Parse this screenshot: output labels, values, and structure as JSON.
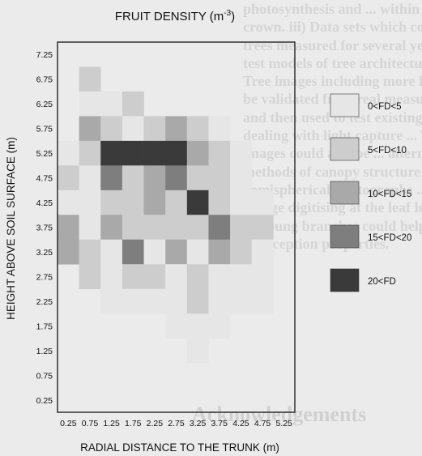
{
  "chart_data": {
    "type": "heatmap",
    "title": "FRUIT DENSITY (m",
    "title_superscript": "-3",
    "title_suffix": ")",
    "xlabel": "RADIAL DISTANCE TO THE TRUNK (m)",
    "ylabel": "HEIGHT ABOVE SOIL SURFACE (m)",
    "x_ticks": [
      "0.25",
      "0.75",
      "1.25",
      "1.75",
      "2.25",
      "2.75",
      "3.25",
      "3.75",
      "4.25",
      "4.75",
      "5.25"
    ],
    "y_ticks": [
      "7.25",
      "6.75",
      "6.25",
      "5.75",
      "5.25",
      "4.75",
      "4.25",
      "3.75",
      "3.25",
      "2.75",
      "2.25",
      "1.75",
      "1.25",
      "0.75",
      "0.25"
    ],
    "legend": [
      {
        "label": "0<FD<5",
        "color": "#e6e6e6"
      },
      {
        "label": "5<FD<10",
        "color": "#cdcdcd"
      },
      {
        "label": "10<FD<15",
        "color": "#a9a9a9"
      },
      {
        "label": "15<FD<20",
        "color": "#7e7e7e"
      },
      {
        "label": "20<FD",
        "color": "#3a3a3a"
      }
    ],
    "value_encoding": "density class index: 0 = 0<FD<5, 1 = 5<FD<10, 2 = 10<FD<15, 3 = 15<FD<20, 4 = 20<FD, null = no data",
    "grid": [
      [
        null,
        null,
        null,
        null,
        null,
        null,
        null,
        null,
        null,
        null,
        null
      ],
      [
        null,
        1,
        null,
        null,
        null,
        null,
        null,
        null,
        null,
        null,
        null
      ],
      [
        null,
        0,
        0,
        1,
        null,
        null,
        null,
        null,
        null,
        null,
        null
      ],
      [
        null,
        2,
        1,
        0,
        1,
        2,
        1,
        0,
        null,
        null,
        null
      ],
      [
        0,
        1,
        4,
        4,
        4,
        4,
        2,
        1,
        0,
        null,
        null
      ],
      [
        1,
        0,
        3,
        1,
        2,
        3,
        1,
        1,
        0,
        null,
        null
      ],
      [
        0,
        0,
        1,
        1,
        2,
        1,
        4,
        1,
        0,
        0,
        null
      ],
      [
        2,
        0,
        2,
        1,
        1,
        1,
        1,
        3,
        1,
        1,
        null
      ],
      [
        2,
        1,
        0,
        3,
        0,
        2,
        0,
        2,
        1,
        0,
        null
      ],
      [
        null,
        1,
        0,
        1,
        1,
        0,
        1,
        0,
        0,
        0,
        null
      ],
      [
        null,
        null,
        0,
        0,
        0,
        0,
        1,
        0,
        0,
        0,
        null
      ],
      [
        null,
        null,
        null,
        null,
        null,
        0,
        0,
        0,
        null,
        null,
        null
      ],
      [
        null,
        null,
        null,
        null,
        null,
        null,
        0,
        null,
        null,
        null,
        null
      ],
      [
        null,
        null,
        null,
        null,
        null,
        null,
        null,
        null,
        null,
        null,
        null
      ],
      [
        null,
        null,
        null,
        null,
        null,
        null,
        null,
        null,
        null,
        null,
        null
      ]
    ]
  },
  "background_text": {
    "lines": [
      "photosynthesis and ... within the",
      "crown. iii) Data sets which could be obtained on",
      "trees measured for several years could be used to",
      "test models of tree architecture dynamics. iv)",
      "Tree images including more leaves could",
      "be validated from real measurements of",
      "and then used to test existing models",
      "dealing with light capture ... Tree",
      "images could also be ... alternative",
      "methods of canopy structure assessment ... e.g.",
      "hemispherical photographs ... (1989). Finally",
      "foliage digitising at the leaf level on small limbs",
      "or young branches could help define their light",
      "interception properties."
    ],
    "heading": "Acknowledgements"
  }
}
